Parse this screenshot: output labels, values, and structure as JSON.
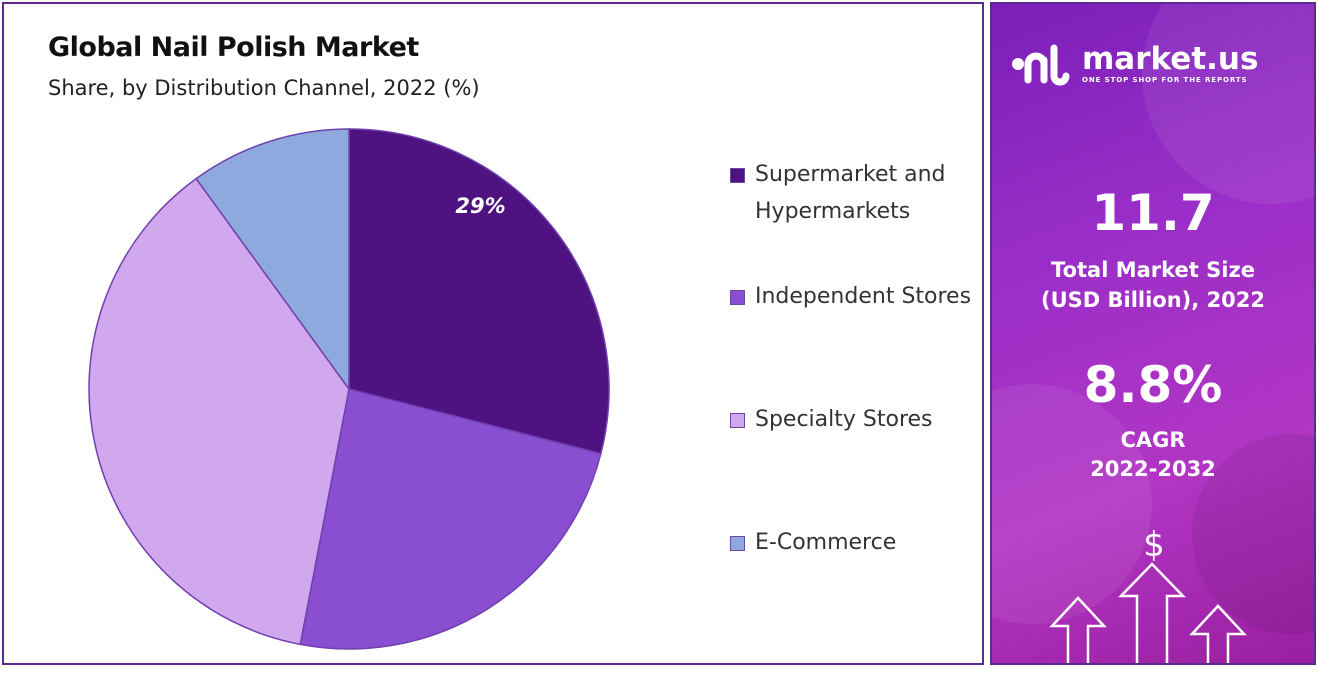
{
  "chart_data": {
    "type": "pie",
    "title": "Global Nail Polish Market",
    "subtitle": "Share, by Distribution Channel, 2022 (%)",
    "categories": [
      "Supermarket and Hypermarkets",
      "Independent Stores",
      "Specialty Stores",
      "E-Commerce"
    ],
    "values": [
      29,
      24,
      37,
      10
    ],
    "data_labels": [
      "29%",
      "",
      "",
      ""
    ],
    "colors": [
      "#4e1381",
      "#8a4fd1",
      "#d1a7ee",
      "#8ea9dd"
    ],
    "legend_position": "right"
  },
  "sidebar": {
    "brand_name": "market.us",
    "brand_tagline": "ONE STOP SHOP FOR THE REPORTS",
    "market_size_value": "11.7",
    "market_size_label_line1": "Total Market Size",
    "market_size_label_line2": "(USD Billion), 2022",
    "cagr_value": "8.8%",
    "cagr_label": "CAGR",
    "cagr_period": "2022-2032",
    "currency_symbol": "$"
  }
}
